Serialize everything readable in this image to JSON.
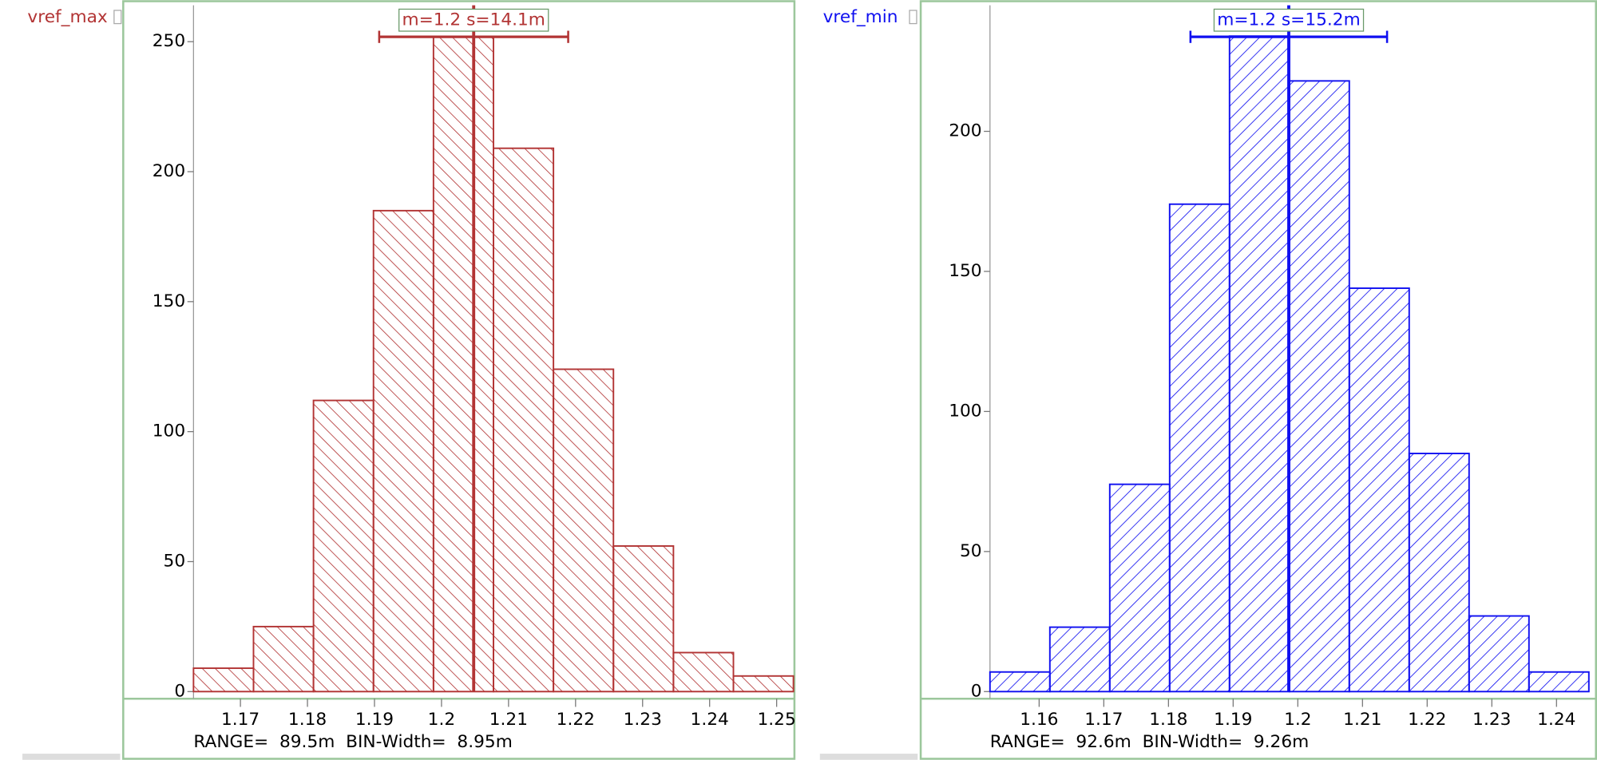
{
  "chart_data": [
    {
      "type": "histogram",
      "title": "vref_max",
      "color": "#b23434",
      "bins": [
        1.163,
        1.17195,
        1.1809,
        1.18985,
        1.1988,
        1.20775,
        1.2167,
        1.22565,
        1.2346,
        1.24355,
        1.2525
      ],
      "values": [
        9,
        25,
        112,
        185,
        252,
        209,
        124,
        56,
        15,
        6
      ],
      "xlim": [
        1.163,
        1.2525
      ],
      "xticks": [
        1.17,
        1.18,
        1.19,
        1.2,
        1.21,
        1.22,
        1.23,
        1.24,
        1.25
      ],
      "ylim": [
        0,
        264
      ],
      "yticks": [
        0,
        50,
        100,
        150,
        200,
        250
      ],
      "mean": 1.2048,
      "std": 0.0141,
      "stat_label": "m=1.2 s=14.1m",
      "footer": "RANGE=  89.5m  BIN-Width=  8.95m"
    },
    {
      "type": "histogram",
      "title": "vref_min",
      "color": "#1010f0",
      "bins": [
        1.1524,
        1.16166,
        1.17092,
        1.18018,
        1.18944,
        1.1987,
        1.20796,
        1.21722,
        1.22648,
        1.23574,
        1.245
      ],
      "values": [
        7,
        23,
        74,
        174,
        234,
        218,
        144,
        85,
        27,
        7
      ],
      "xlim": [
        1.1524,
        1.245
      ],
      "xticks": [
        1.16,
        1.17,
        1.18,
        1.19,
        1.2,
        1.21,
        1.22,
        1.23,
        1.24
      ],
      "ylim": [
        0,
        245
      ],
      "yticks": [
        0,
        50,
        100,
        150,
        200
      ],
      "mean": 1.1986,
      "std": 0.0152,
      "stat_label": "m=1.2 s=15.2m",
      "footer": "RANGE=  92.6m  BIN-Width=  9.26m"
    }
  ]
}
